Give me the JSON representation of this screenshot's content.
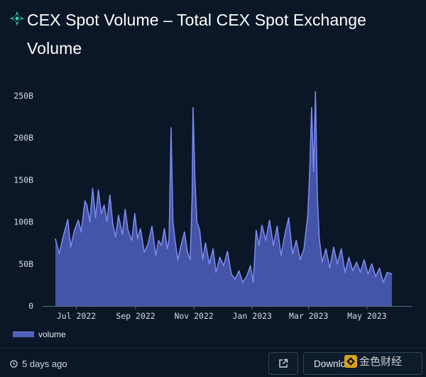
{
  "header": {
    "title": "CEX Spot Volume – Total CEX Spot Exchange Volume",
    "logo_icon": "diamond-sparkle-icon",
    "accent_color": "#3dd9b0"
  },
  "footer": {
    "updated": "5 days ago",
    "clock_icon": "clock-icon",
    "share_icon": "external-link-icon",
    "download_label": "Download",
    "watermark_text": "金色财经"
  },
  "chart_data": {
    "type": "area",
    "title": "",
    "xlabel": "",
    "ylabel": "",
    "ylim": [
      0,
      260
    ],
    "y_unit": "B",
    "y_ticks": [
      "0",
      "50B",
      "100B",
      "150B",
      "200B",
      "250B"
    ],
    "x_ticks": [
      "Jul 2022",
      "Sep 2022",
      "Nov 2022",
      "Jan 2023",
      "Mar 2023",
      "May 2023"
    ],
    "x_range": [
      "2022-06-18",
      "2023-06-05"
    ],
    "legend": [
      "volume"
    ],
    "legend_position": "bottom-left",
    "grid": false,
    "series": [
      {
        "name": "volume",
        "color": "#7a88f0",
        "fill": "#4f5fbd",
        "points": [
          [
            "2022-06-18",
            80
          ],
          [
            "2022-06-22",
            62
          ],
          [
            "2022-06-26",
            82
          ],
          [
            "2022-07-01",
            103
          ],
          [
            "2022-07-04",
            70
          ],
          [
            "2022-07-08",
            90
          ],
          [
            "2022-07-12",
            102
          ],
          [
            "2022-07-15",
            88
          ],
          [
            "2022-07-19",
            125
          ],
          [
            "2022-07-21",
            120
          ],
          [
            "2022-07-24",
            100
          ],
          [
            "2022-07-27",
            140
          ],
          [
            "2022-07-30",
            105
          ],
          [
            "2022-08-02",
            138
          ],
          [
            "2022-08-05",
            110
          ],
          [
            "2022-08-08",
            120
          ],
          [
            "2022-08-11",
            100
          ],
          [
            "2022-08-14",
            132
          ],
          [
            "2022-08-17",
            98
          ],
          [
            "2022-08-20",
            82
          ],
          [
            "2022-08-23",
            108
          ],
          [
            "2022-08-27",
            85
          ],
          [
            "2022-08-30",
            115
          ],
          [
            "2022-09-02",
            90
          ],
          [
            "2022-09-06",
            78
          ],
          [
            "2022-09-09",
            110
          ],
          [
            "2022-09-12",
            80
          ],
          [
            "2022-09-15",
            92
          ],
          [
            "2022-09-19",
            64
          ],
          [
            "2022-09-23",
            74
          ],
          [
            "2022-09-27",
            95
          ],
          [
            "2022-10-01",
            60
          ],
          [
            "2022-10-04",
            78
          ],
          [
            "2022-10-07",
            72
          ],
          [
            "2022-10-10",
            92
          ],
          [
            "2022-10-13",
            68
          ],
          [
            "2022-10-15",
            80
          ],
          [
            "2022-10-17",
            212
          ],
          [
            "2022-10-19",
            100
          ],
          [
            "2022-10-21",
            80
          ],
          [
            "2022-10-24",
            55
          ],
          [
            "2022-10-27",
            70
          ],
          [
            "2022-10-31",
            88
          ],
          [
            "2022-11-03",
            65
          ],
          [
            "2022-11-06",
            55
          ],
          [
            "2022-11-08",
            130
          ],
          [
            "2022-11-09",
            236
          ],
          [
            "2022-11-11",
            150
          ],
          [
            "2022-11-13",
            100
          ],
          [
            "2022-11-16",
            90
          ],
          [
            "2022-11-19",
            55
          ],
          [
            "2022-11-22",
            75
          ],
          [
            "2022-11-26",
            50
          ],
          [
            "2022-11-30",
            68
          ],
          [
            "2022-12-03",
            40
          ],
          [
            "2022-12-07",
            58
          ],
          [
            "2022-12-11",
            48
          ],
          [
            "2022-12-15",
            65
          ],
          [
            "2022-12-19",
            38
          ],
          [
            "2022-12-23",
            32
          ],
          [
            "2022-12-27",
            42
          ],
          [
            "2022-12-31",
            28
          ],
          [
            "2023-01-04",
            35
          ],
          [
            "2023-01-08",
            48
          ],
          [
            "2023-01-11",
            28
          ],
          [
            "2023-01-14",
            90
          ],
          [
            "2023-01-17",
            72
          ],
          [
            "2023-01-20",
            96
          ],
          [
            "2023-01-24",
            78
          ],
          [
            "2023-01-28",
            102
          ],
          [
            "2023-02-01",
            72
          ],
          [
            "2023-02-05",
            95
          ],
          [
            "2023-02-09",
            60
          ],
          [
            "2023-02-13",
            85
          ],
          [
            "2023-02-17",
            105
          ],
          [
            "2023-02-21",
            62
          ],
          [
            "2023-02-25",
            78
          ],
          [
            "2023-03-01",
            55
          ],
          [
            "2023-03-05",
            68
          ],
          [
            "2023-03-09",
            108
          ],
          [
            "2023-03-11",
            160
          ],
          [
            "2023-03-13",
            236
          ],
          [
            "2023-03-15",
            160
          ],
          [
            "2023-03-17",
            255
          ],
          [
            "2023-03-19",
            130
          ],
          [
            "2023-03-21",
            80
          ],
          [
            "2023-03-24",
            52
          ],
          [
            "2023-03-28",
            68
          ],
          [
            "2023-04-01",
            45
          ],
          [
            "2023-04-05",
            70
          ],
          [
            "2023-04-09",
            50
          ],
          [
            "2023-04-13",
            68
          ],
          [
            "2023-04-17",
            40
          ],
          [
            "2023-04-21",
            58
          ],
          [
            "2023-04-25",
            42
          ],
          [
            "2023-04-29",
            52
          ],
          [
            "2023-05-03",
            40
          ],
          [
            "2023-05-07",
            55
          ],
          [
            "2023-05-11",
            38
          ],
          [
            "2023-05-15",
            50
          ],
          [
            "2023-05-19",
            35
          ],
          [
            "2023-05-23",
            45
          ],
          [
            "2023-05-27",
            28
          ],
          [
            "2023-05-31",
            40
          ],
          [
            "2023-06-05",
            38
          ]
        ]
      }
    ]
  }
}
